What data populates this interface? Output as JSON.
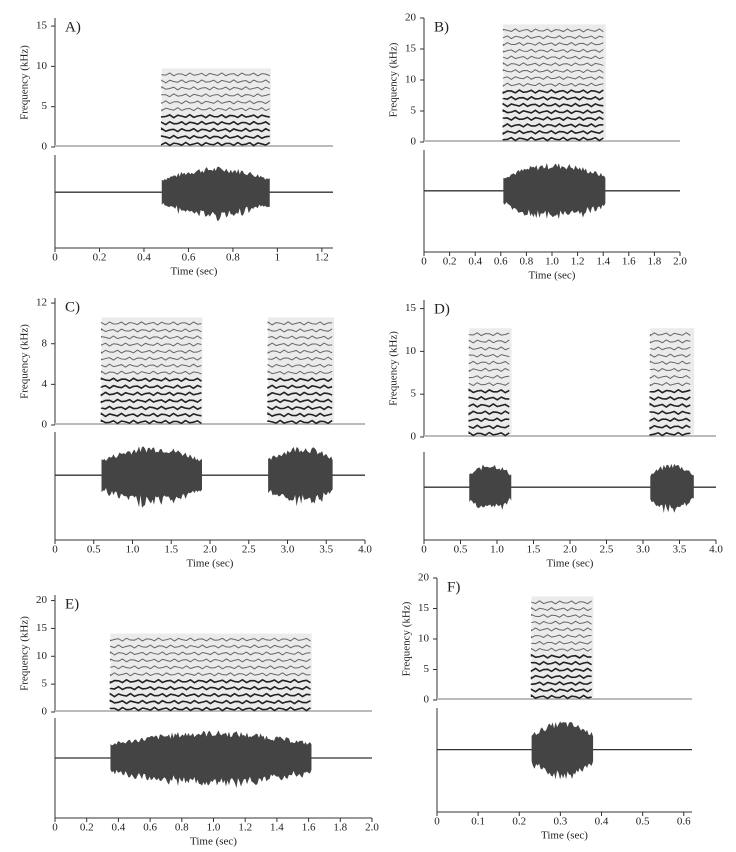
{
  "chart_data": [
    {
      "type": "spectrogram",
      "title": "A)",
      "ylabel": "Frequency (kHz)",
      "xlabel": "Time (sec)",
      "ylim": [
        0,
        16
      ],
      "yticks": [
        0,
        5,
        10,
        15
      ],
      "xlim": [
        0,
        1.25
      ],
      "xticks": [
        0,
        0.2,
        0.4,
        0.6,
        0.8,
        1,
        1.2
      ],
      "segments": [
        {
          "start": 0.48,
          "end": 0.97,
          "fmax": 9
        }
      ]
    },
    {
      "type": "spectrogram",
      "title": "B)",
      "ylabel": "Frequency (kHz)",
      "xlabel": "Time (sec)",
      "ylim": [
        0,
        20
      ],
      "yticks": [
        0,
        5,
        10,
        15,
        20
      ],
      "xlim": [
        0,
        2
      ],
      "xticks": [
        0,
        0.2,
        0.4,
        0.6,
        0.8,
        {
          "value": 1,
          "label": "1.0"
        },
        1.2,
        1.4,
        1.6,
        1.8,
        {
          "value": 2,
          "label": "2.0"
        }
      ],
      "segments": [
        {
          "start": 0.62,
          "end": 1.42,
          "fmax": 18
        }
      ]
    },
    {
      "type": "spectrogram",
      "title": "C)",
      "ylabel": "Frequency (kHz)",
      "xlabel": "Time (sec)",
      "ylim": [
        0,
        12.5
      ],
      "yticks": [
        0,
        4,
        8,
        12
      ],
      "xlim": [
        0,
        4
      ],
      "xticks": [
        0,
        0.5,
        {
          "value": 1,
          "label": "1.0"
        },
        1.5,
        {
          "value": 2,
          "label": "2.0"
        },
        2.5,
        {
          "value": 3,
          "label": "3.0"
        },
        3.5,
        {
          "value": 4,
          "label": "4.0"
        }
      ],
      "segments": [
        {
          "start": 0.6,
          "end": 1.9,
          "fmax": 10
        },
        {
          "start": 2.75,
          "end": 3.6,
          "fmax": 10
        }
      ]
    },
    {
      "type": "spectrogram",
      "title": "D)",
      "ylabel": "Frequency (kHz)",
      "xlabel": "Time (sec)",
      "ylim": [
        0,
        16
      ],
      "yticks": [
        0,
        5,
        10,
        15
      ],
      "xlim": [
        0,
        4
      ],
      "xticks": [
        0,
        0.5,
        {
          "value": 1,
          "label": "1.0"
        },
        1.5,
        {
          "value": 2,
          "label": "2.0"
        },
        2.5,
        {
          "value": 3,
          "label": "3.0"
        },
        3.5,
        {
          "value": 4,
          "label": "4.0"
        }
      ],
      "segments": [
        {
          "start": 0.62,
          "end": 1.2,
          "fmax": 12
        },
        {
          "start": 3.1,
          "end": 3.7,
          "fmax": 12
        }
      ]
    },
    {
      "type": "spectrogram",
      "title": "E)",
      "ylabel": "Frequency (kHz)",
      "xlabel": "Time (sec)",
      "ylim": [
        0,
        21
      ],
      "yticks": [
        0,
        5,
        10,
        15,
        20
      ],
      "xlim": [
        0,
        2
      ],
      "xticks": [
        0,
        0.2,
        0.4,
        0.6,
        0.8,
        {
          "value": 1,
          "label": "1.0"
        },
        1.2,
        1.4,
        1.6,
        1.8,
        {
          "value": 2,
          "label": "2.0"
        }
      ],
      "segments": [
        {
          "start": 0.35,
          "end": 1.62,
          "fmax": 13
        }
      ]
    },
    {
      "type": "spectrogram",
      "title": "F)",
      "ylabel": "Frequency (kHz)",
      "xlabel": "Time (sec)",
      "ylim": [
        0,
        20
      ],
      "yticks": [
        0,
        5,
        10,
        15,
        20
      ],
      "xlim": [
        0,
        0.62
      ],
      "xticks": [
        0,
        0.1,
        0.2,
        0.3,
        0.4,
        0.5,
        0.6
      ],
      "segments": [
        {
          "start": 0.23,
          "end": 0.38,
          "fmax": 16
        }
      ]
    }
  ]
}
